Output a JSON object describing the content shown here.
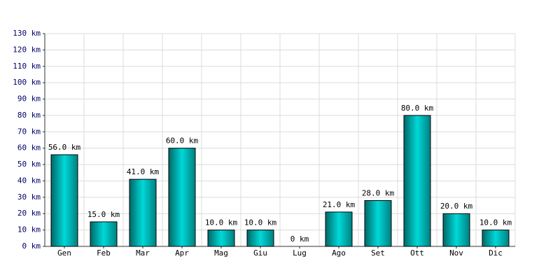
{
  "chart_data": {
    "type": "bar",
    "categories": [
      "Gen",
      "Feb",
      "Mar",
      "Apr",
      "Mag",
      "Giu",
      "Lug",
      "Ago",
      "Set",
      "Ott",
      "Nov",
      "Dic"
    ],
    "values": [
      56,
      15,
      41,
      60,
      10,
      10,
      0,
      21,
      28,
      80,
      20,
      10
    ],
    "value_labels": [
      "56.0 km",
      "15.0 km",
      "41.0 km",
      "60.0 km",
      "10.0 km",
      "10.0 km",
      "0 km",
      "21.0 km",
      "28.0 km",
      "80.0 km",
      "20.0 km",
      "10.0 km"
    ],
    "color": "#00d8d8",
    "ylim": [
      0,
      130
    ],
    "yticks": [
      {
        "value": 0,
        "label": "0 km"
      },
      {
        "value": 10,
        "label": "10 km"
      },
      {
        "value": 20,
        "label": "20 km"
      },
      {
        "value": 30,
        "label": "30 km"
      },
      {
        "value": 40,
        "label": "40 km"
      },
      {
        "value": 50,
        "label": "50 km"
      },
      {
        "value": 60,
        "label": "60 km"
      },
      {
        "value": 70,
        "label": "70 km"
      },
      {
        "value": 80,
        "label": "80 km"
      },
      {
        "value": 90,
        "label": "90 km"
      },
      {
        "value": 100,
        "label": "100 km"
      },
      {
        "value": 110,
        "label": "110 km"
      },
      {
        "value": 120,
        "label": "120 km"
      },
      {
        "value": 130,
        "label": "130 km"
      }
    ],
    "grid": true
  }
}
